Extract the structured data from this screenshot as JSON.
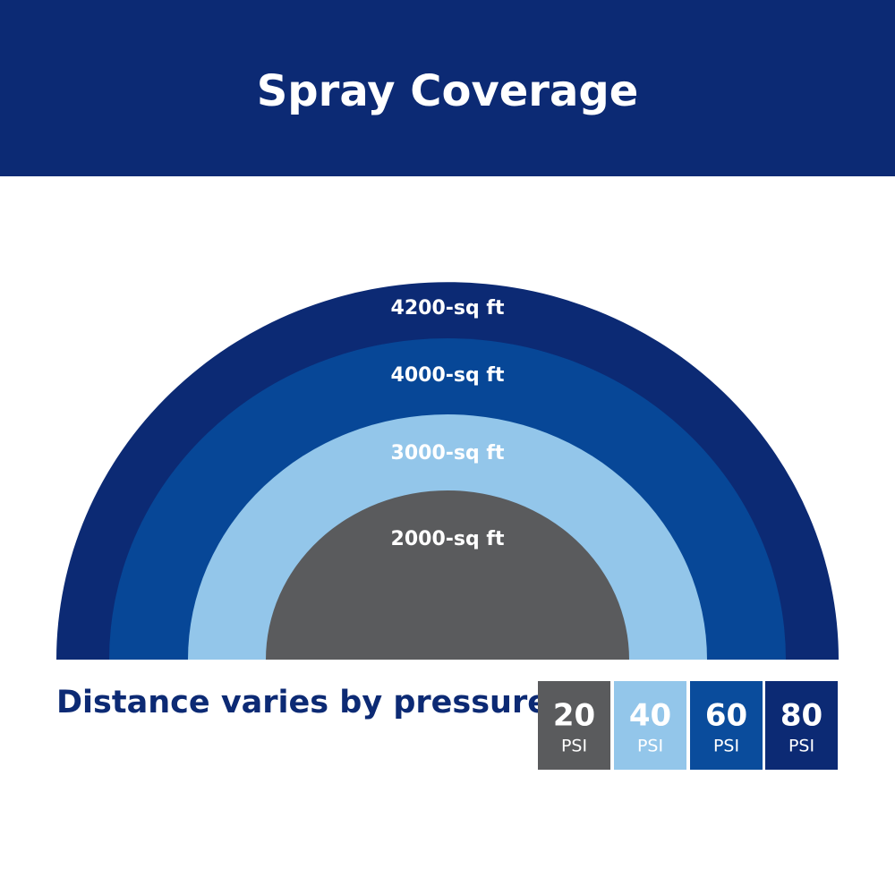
{
  "header": {
    "title": "Spray Coverage"
  },
  "arcs": [
    {
      "label": "4200-sq ft",
      "color": "#0c2a74"
    },
    {
      "label": "4000-sq ft",
      "color": "#074797"
    },
    {
      "label": "3000-sq ft",
      "color": "#93c6ea"
    },
    {
      "label": "2000-sq ft",
      "color": "#5a5b5d"
    }
  ],
  "caption": "Distance varies by pressure.",
  "legend": [
    {
      "value": "20",
      "unit": "PSI",
      "color": "#5a5b5d"
    },
    {
      "value": "40",
      "unit": "PSI",
      "color": "#93c6ea"
    },
    {
      "value": "60",
      "unit": "PSI",
      "color": "#0a4c9c"
    },
    {
      "value": "80",
      "unit": "PSI",
      "color": "#0c2a74"
    }
  ]
}
